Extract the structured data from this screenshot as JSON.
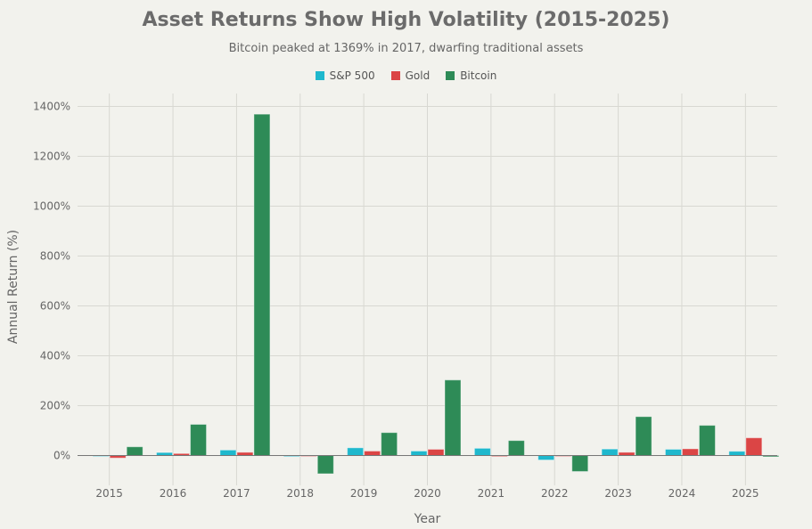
{
  "chart_data": {
    "type": "bar",
    "title": "Asset Returns Show High Volatility (2015-2025)",
    "subtitle": "Bitcoin peaked at 1369% in 2017, dwarfing traditional assets",
    "xlabel": "Year",
    "ylabel": "Annual Return (%)",
    "ylim": [
      -100,
      1450
    ],
    "yticks": [
      0,
      200,
      400,
      600,
      800,
      1000,
      1200,
      1400
    ],
    "ytick_labels": [
      "0%",
      "200%",
      "400%",
      "600%",
      "800%",
      "1000%",
      "1200%",
      "1400%"
    ],
    "categories": [
      "2015",
      "2016",
      "2017",
      "2018",
      "2019",
      "2020",
      "2021",
      "2022",
      "2023",
      "2024",
      "2025"
    ],
    "legend_position": "top-center",
    "grid": true,
    "series": [
      {
        "name": "S&P 500",
        "color": "#1fb8cd",
        "values": [
          -1,
          12,
          22,
          -4,
          31,
          18,
          29,
          -18,
          26,
          25,
          17
        ]
      },
      {
        "name": "Gold",
        "color": "#db4545",
        "values": [
          -10,
          8,
          13,
          -2,
          18,
          25,
          -4,
          0,
          13,
          27,
          71
        ]
      },
      {
        "name": "Bitcoin",
        "color": "#2e8b57",
        "values": [
          35,
          125,
          1369,
          -73,
          92,
          303,
          60,
          -64,
          156,
          121,
          -5
        ]
      }
    ]
  }
}
